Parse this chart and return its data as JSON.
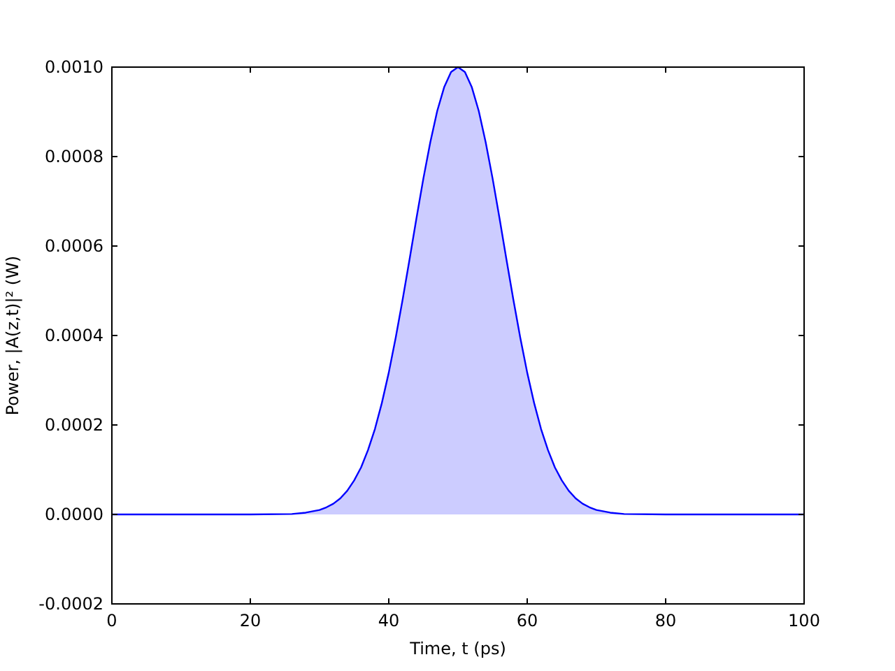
{
  "chart_data": {
    "type": "area",
    "xlabel": "Time, t (ps)",
    "ylabel": "Power, |A(z,t)|² (W)",
    "x": [
      0,
      10,
      20,
      26,
      28,
      30,
      31,
      32,
      33,
      34,
      35,
      36,
      37,
      38,
      39,
      40,
      41,
      42,
      43,
      44,
      45,
      46,
      47,
      48,
      49,
      50,
      51,
      52,
      53,
      54,
      55,
      56,
      57,
      58,
      59,
      60,
      61,
      62,
      63,
      64,
      65,
      66,
      67,
      68,
      69,
      70,
      72,
      74,
      80,
      90,
      100
    ],
    "series": [
      {
        "color": "#0000ff",
        "values": [
          0,
          0,
          0,
          1e-06,
          4e-06,
          1e-05,
          1.6e-05,
          2.4e-05,
          3.6e-05,
          5.3e-05,
          7.6e-05,
          0.000105,
          0.000144,
          0.000191,
          0.000249,
          0.000317,
          0.000395,
          0.00048,
          0.00057,
          0.000662,
          0.000751,
          0.000832,
          0.000902,
          0.000955,
          0.000989,
          0.001,
          0.000989,
          0.000955,
          0.000902,
          0.000832,
          0.000751,
          0.000662,
          0.00057,
          0.00048,
          0.000395,
          0.000317,
          0.000249,
          0.000191,
          0.000144,
          0.000105,
          7.6e-05,
          5.3e-05,
          3.6e-05,
          2.4e-05,
          1.6e-05,
          1e-05,
          4e-06,
          1e-06,
          0,
          0,
          0
        ]
      }
    ],
    "xlim": [
      0,
      100
    ],
    "xticks": [
      0,
      20,
      40,
      60,
      80,
      100
    ],
    "ylim": [
      -0.0002,
      0.001
    ],
    "yticks": [
      {
        "value": -0.0002,
        "label": "-0.0002"
      },
      {
        "value": 0,
        "label": "0.0000"
      },
      {
        "value": 0.0002,
        "label": "0.0002"
      },
      {
        "value": 0.0004,
        "label": "0.0004"
      },
      {
        "value": 0.0006,
        "label": "0.0006"
      },
      {
        "value": 0.0008,
        "label": "0.0008"
      },
      {
        "value": 0.001,
        "label": "0.0010"
      }
    ],
    "grid": false
  }
}
